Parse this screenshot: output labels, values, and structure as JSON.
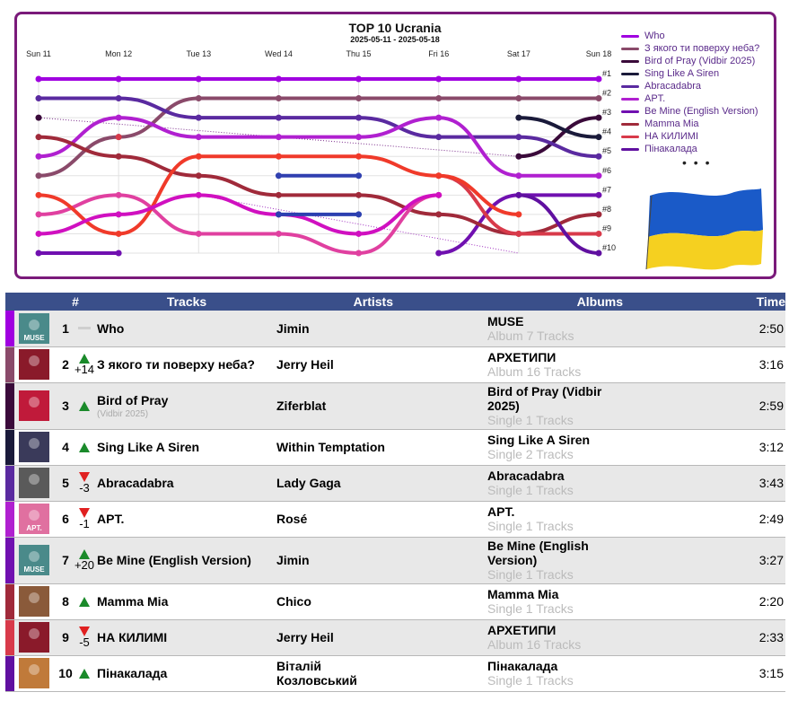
{
  "chart_data": {
    "type": "line",
    "title": "TOP 10 Ucrania",
    "subtitle": "2025-05-11 - 2025-05-18",
    "x": [
      "Sun 11",
      "Mon 12",
      "Tue 13",
      "Wed 14",
      "Thu 15",
      "Fri 16",
      "Sat 17",
      "Sun 18"
    ],
    "y_tick_labels": [
      "#1",
      "#2",
      "#3",
      "#4",
      "#5",
      "#6",
      "#7",
      "#8",
      "#9",
      "#10"
    ],
    "y_reversed": true,
    "ylim": [
      1,
      10
    ],
    "grid": true,
    "legend_position": "right",
    "legend_more": "• • •",
    "series": [
      {
        "name": "Who",
        "color": "#a000e0",
        "values": [
          1,
          1,
          1,
          1,
          1,
          1,
          1,
          1
        ]
      },
      {
        "name": "З якого ти поверху неба?",
        "color": "#8a4a6a",
        "values": [
          6,
          4,
          2,
          2,
          2,
          2,
          2,
          2
        ]
      },
      {
        "name": "Bird of Pray (Vidbir 2025)",
        "color": "#3a0a3a",
        "values": [
          3,
          null,
          null,
          null,
          null,
          null,
          5,
          3
        ]
      },
      {
        "name": "Sing Like A Siren",
        "color": "#1a1a3a",
        "values": [
          null,
          null,
          null,
          null,
          null,
          null,
          3,
          4
        ]
      },
      {
        "name": "Abracadabra",
        "color": "#5a2aa0",
        "values": [
          2,
          2,
          3,
          3,
          3,
          4,
          4,
          5
        ]
      },
      {
        "name": "APT.",
        "color": "#b020d0",
        "values": [
          5,
          3,
          4,
          4,
          4,
          3,
          6,
          6
        ]
      },
      {
        "name": "Be Mine (English Version)",
        "color": "#7010b0",
        "values": [
          10,
          10,
          null,
          null,
          null,
          10,
          7,
          7
        ]
      },
      {
        "name": "Mamma Mia",
        "color": "#a02a3a",
        "values": [
          4,
          5,
          6,
          7,
          7,
          8,
          9,
          8
        ]
      },
      {
        "name": "НА КИЛИМІ",
        "color": "#d83a4a",
        "values": [
          null,
          4,
          null,
          null,
          null,
          6,
          9,
          9
        ]
      },
      {
        "name": "Пінакалада",
        "color": "#6010a0",
        "values": [
          null,
          null,
          null,
          null,
          null,
          null,
          7,
          10
        ]
      },
      {
        "name": "",
        "color": "#e040a0",
        "values": [
          8,
          7,
          9,
          9,
          10,
          7,
          null,
          null
        ]
      },
      {
        "name": "",
        "color": "#f03a2a",
        "values": [
          7,
          9,
          5,
          5,
          5,
          6,
          8,
          null
        ]
      },
      {
        "name": "",
        "color": "#d010c0",
        "values": [
          9,
          8,
          7,
          8,
          9,
          7,
          null,
          null
        ]
      },
      {
        "name": "",
        "color": "#3040b0",
        "values": [
          null,
          null,
          null,
          6,
          6,
          null,
          null,
          null
        ]
      },
      {
        "name": "",
        "color": "#2c40b0",
        "values": [
          null,
          null,
          null,
          8,
          8,
          null,
          null,
          null
        ]
      }
    ],
    "dotted_trend": [
      {
        "color": "#7a2a8a",
        "from": [
          "Sun 11",
          3
        ],
        "to": [
          "Sat 17",
          5
        ]
      },
      {
        "color": "#a030c0",
        "from": [
          "Tue 13",
          7
        ],
        "to": [
          "Sat 17",
          10
        ]
      }
    ]
  },
  "table": {
    "headers": {
      "rank": "#",
      "tracks": "Tracks",
      "artists": "Artists",
      "albums": "Albums",
      "time": "Time"
    },
    "rows": [
      {
        "rank": "1",
        "move": "none",
        "move_text": "",
        "title": "Who",
        "subtitle": "",
        "artist": "Jimin",
        "album": "MUSE",
        "album_sub": "Album 7 Tracks",
        "time": "2:50",
        "bar_color": "#a000e0",
        "cover_color": "#4a8a8a",
        "cover_text": "MUSE"
      },
      {
        "rank": "2",
        "move": "up",
        "move_text": "+14",
        "title": "З якого ти поверху неба?",
        "subtitle": "",
        "artist": "Jerry Heil",
        "album": "АРХЕТИПИ",
        "album_sub": "Album 16 Tracks",
        "time": "3:16",
        "bar_color": "#8a4a6a",
        "cover_color": "#8a1a2a",
        "cover_text": ""
      },
      {
        "rank": "3",
        "move": "up",
        "move_text": "",
        "title": "Bird of Pray",
        "subtitle": "(Vidbir 2025)",
        "artist": "Ziferblat",
        "album": "Bird of Pray (Vidbir 2025)",
        "album_sub": "Single 1 Tracks",
        "time": "2:59",
        "bar_color": "#3a0a3a",
        "cover_color": "#c01a3a",
        "cover_text": ""
      },
      {
        "rank": "4",
        "move": "up",
        "move_text": "",
        "title": "Sing Like A Siren",
        "subtitle": "",
        "artist": "Within Temptation",
        "album": "Sing Like A Siren",
        "album_sub": "Single 2 Tracks",
        "time": "3:12",
        "bar_color": "#1a1a3a",
        "cover_color": "#3a3a5a",
        "cover_text": ""
      },
      {
        "rank": "5",
        "move": "down",
        "move_text": "-3",
        "title": "Abracadabra",
        "subtitle": "",
        "artist": "Lady Gaga",
        "album": "Abracadabra",
        "album_sub": "Single 1 Tracks",
        "time": "3:43",
        "bar_color": "#5a2aa0",
        "cover_color": "#5a5a5a",
        "cover_text": ""
      },
      {
        "rank": "6",
        "move": "down",
        "move_text": "-1",
        "title": "APT.",
        "subtitle": "",
        "artist": "Rosé",
        "album": "APT.",
        "album_sub": "Single 1 Tracks",
        "time": "2:49",
        "bar_color": "#b020d0",
        "cover_color": "#e070a0",
        "cover_text": "APT."
      },
      {
        "rank": "7",
        "move": "up",
        "move_text": "+20",
        "title": "Be Mine (English Version)",
        "subtitle": "",
        "artist": "Jimin",
        "album": "Be Mine (English Version)",
        "album_sub": "Single 1 Tracks",
        "time": "3:27",
        "bar_color": "#7010b0",
        "cover_color": "#4a8a8a",
        "cover_text": "MUSE"
      },
      {
        "rank": "8",
        "move": "up",
        "move_text": "",
        "title": "Mamma Mia",
        "subtitle": "",
        "artist": "Chico",
        "album": "Mamma Mia",
        "album_sub": "Single 1 Tracks",
        "time": "2:20",
        "bar_color": "#a02a3a",
        "cover_color": "#8a5a3a",
        "cover_text": ""
      },
      {
        "rank": "9",
        "move": "down",
        "move_text": "-5",
        "title": "НА КИЛИМІ",
        "subtitle": "",
        "artist": "Jerry Heil",
        "album": "АРХЕТИПИ",
        "album_sub": "Album 16 Tracks",
        "time": "2:33",
        "bar_color": "#d83a4a",
        "cover_color": "#8a1a2a",
        "cover_text": ""
      },
      {
        "rank": "10",
        "move": "up",
        "move_text": "",
        "title": "Пінакалада",
        "subtitle": "",
        "artist": "Віталій Козловський",
        "album": "Пінакалада",
        "album_sub": "Single 1 Tracks",
        "time": "3:15",
        "bar_color": "#6010a0",
        "cover_color": "#c07a3a",
        "cover_text": ""
      }
    ]
  },
  "flag": {
    "top_color": "#1a5ac8",
    "bottom_color": "#f5d020"
  }
}
